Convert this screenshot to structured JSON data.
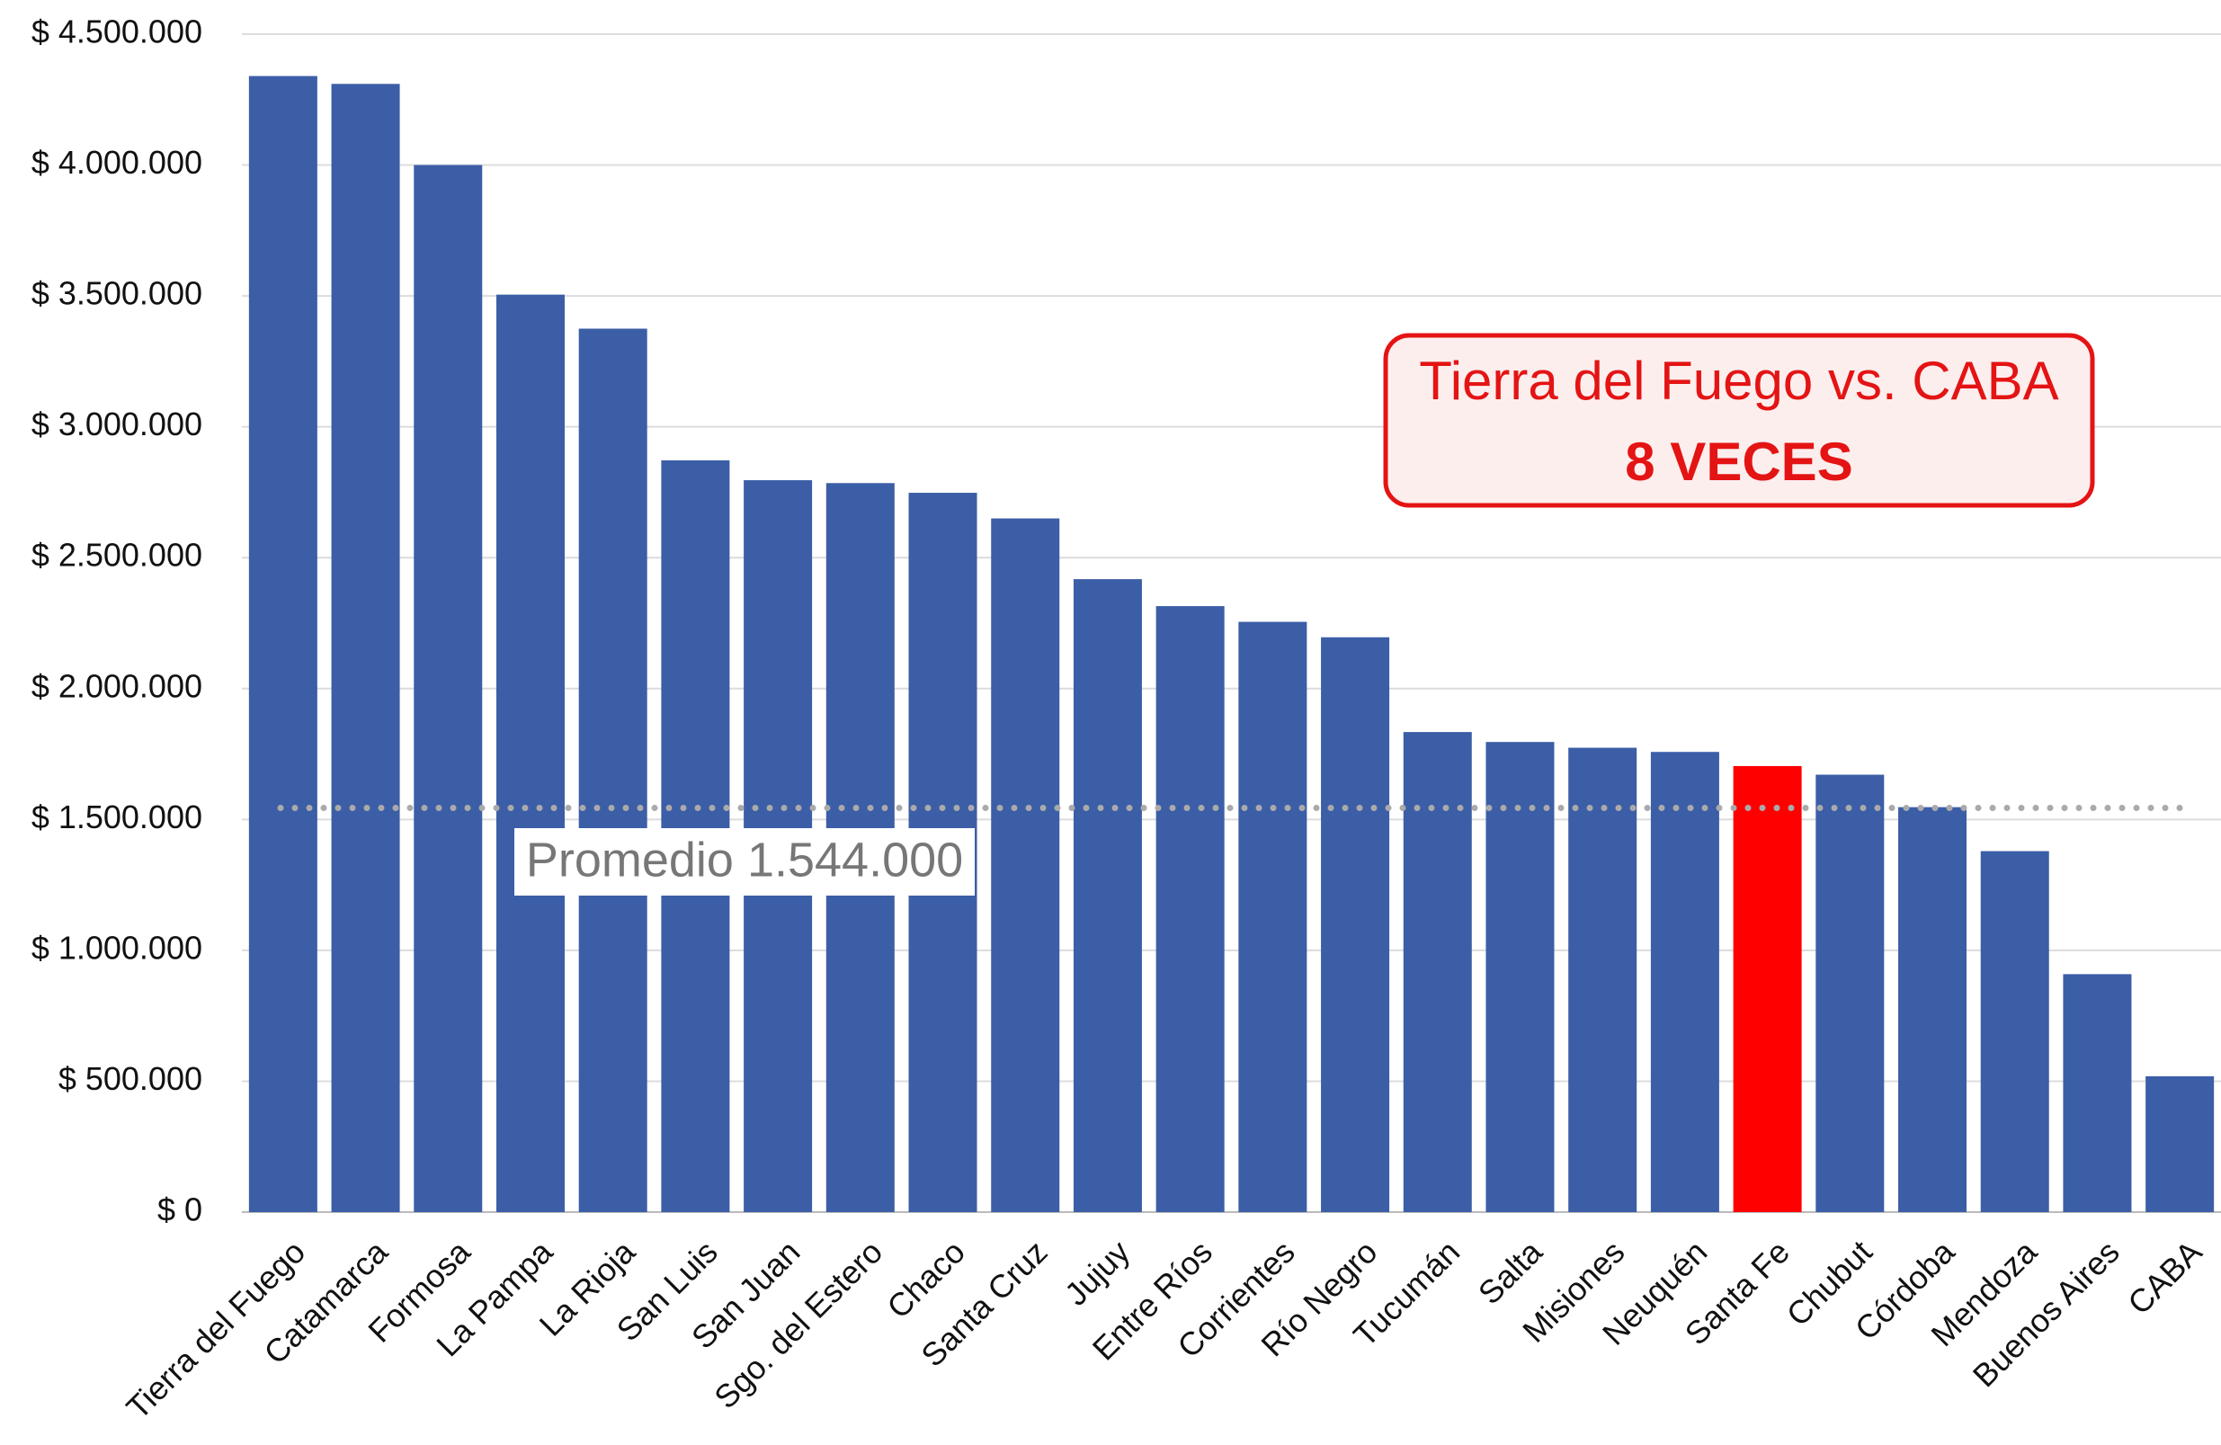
{
  "chart_data": {
    "type": "bar",
    "categories": [
      "Tierra del Fuego",
      "Catamarca",
      "Formosa",
      "La Pampa",
      "La Rioja",
      "San Luis",
      "San Juan",
      "Sgo. del Estero",
      "Chaco",
      "Santa Cruz",
      "Jujuy",
      "Entre Ríos",
      "Corrientes",
      "Río Negro",
      "Tucumán",
      "Salta",
      "Misiones",
      "Neuquén",
      "Santa Fe",
      "Chubut",
      "Córdoba",
      "Mendoza",
      "Buenos Aires",
      "CABA"
    ],
    "values": [
      4340000,
      4310000,
      4000000,
      3505000,
      3375000,
      2872000,
      2796000,
      2785000,
      2748000,
      2650000,
      2418000,
      2315000,
      2255000,
      2196000,
      1834000,
      1796000,
      1774000,
      1758000,
      1704000,
      1671000,
      1547000,
      1379000,
      909000,
      519000
    ],
    "colors": [
      "#3b5ea6",
      "#3b5ea6",
      "#3b5ea6",
      "#3b5ea6",
      "#3b5ea6",
      "#3b5ea6",
      "#3b5ea6",
      "#3b5ea6",
      "#3b5ea6",
      "#3b5ea6",
      "#3b5ea6",
      "#3b5ea6",
      "#3b5ea6",
      "#3b5ea6",
      "#3b5ea6",
      "#3b5ea6",
      "#3b5ea6",
      "#3b5ea6",
      "#ff0000",
      "#3b5ea6",
      "#3b5ea6",
      "#3b5ea6",
      "#3b5ea6",
      "#3b5ea6"
    ],
    "ylim": [
      0,
      4500000
    ],
    "yticks": [
      {
        "value": 0,
        "label": "$ 0"
      },
      {
        "value": 500000,
        "label": "$ 500.000"
      },
      {
        "value": 1000000,
        "label": "$ 1.000.000"
      },
      {
        "value": 1500000,
        "label": "$ 1.500.000"
      },
      {
        "value": 2000000,
        "label": "$ 2.000.000"
      },
      {
        "value": 2500000,
        "label": "$ 2.500.000"
      },
      {
        "value": 3000000,
        "label": "$ 3.000.000"
      },
      {
        "value": 3500000,
        "label": "$ 3.500.000"
      },
      {
        "value": 4000000,
        "label": "$ 4.000.000"
      },
      {
        "value": 4500000,
        "label": "$ 4.500.000"
      }
    ],
    "grid": true,
    "average": {
      "value": 1544000,
      "label": "Promedio 1.544.000"
    },
    "annotation": {
      "line1": "Tierra del Fuego vs. CABA",
      "line2": "8 VECES"
    }
  }
}
